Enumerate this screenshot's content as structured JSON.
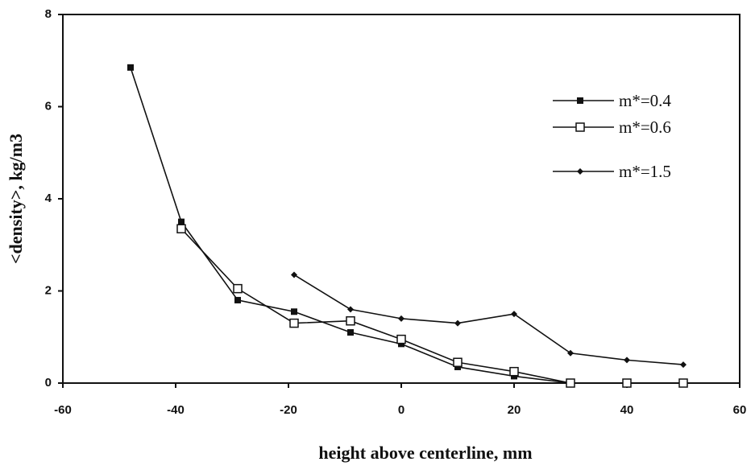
{
  "chart_data": {
    "type": "line",
    "x_label": "height above centerline, mm",
    "y_label": "<density>, kg/m3",
    "x": [
      -48,
      -39,
      -29,
      -19,
      -9,
      0,
      10,
      20,
      30,
      40,
      50
    ],
    "series": [
      {
        "name": "m*=0.4",
        "color": "#111111",
        "marker": "filled-square",
        "values": [
          6.85,
          3.5,
          1.8,
          1.55,
          1.1,
          0.85,
          0.35,
          0.15,
          0,
          0,
          0
        ]
      },
      {
        "name": "m*=0.6",
        "color": "#111111",
        "marker": "open-square",
        "values": [
          null,
          3.35,
          2.05,
          1.3,
          1.35,
          0.95,
          0.45,
          0.25,
          0,
          0,
          0
        ]
      },
      {
        "name": "m*=1.5",
        "color": "#111111",
        "marker": "diamond",
        "values": [
          null,
          null,
          null,
          2.35,
          1.6,
          1.4,
          1.3,
          1.5,
          0.65,
          0.5,
          0.4
        ]
      }
    ],
    "xlim": [
      -60,
      60
    ],
    "xticks": [
      -60,
      -40,
      -20,
      0,
      20,
      40,
      60
    ],
    "ylim": [
      0,
      8
    ],
    "yticks": [
      0,
      2,
      4,
      6,
      8
    ],
    "grid": false,
    "legend": "upper right"
  }
}
